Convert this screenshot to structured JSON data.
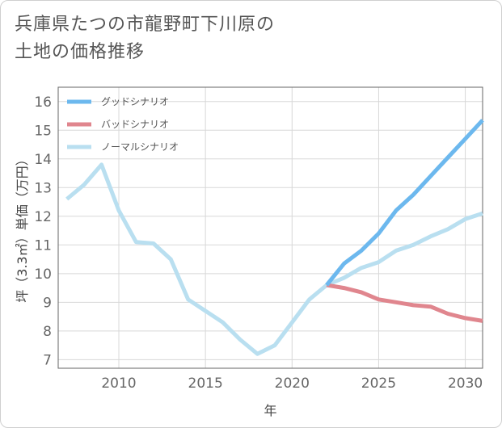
{
  "title_line1": "兵庫県たつの市龍野町下川原の",
  "title_line2": "土地の価格推移",
  "chart_data": {
    "type": "line",
    "title": "兵庫県たつの市龍野町下川原の土地の価格推移",
    "xlabel": "年",
    "ylabel": "坪（3.3㎡）単価（万円）",
    "xlim": [
      2006.5,
      2031
    ],
    "ylim": [
      6.7,
      16.5
    ],
    "xticks": [
      2010,
      2015,
      2020,
      2025,
      2030
    ],
    "yticks": [
      7,
      8,
      9,
      10,
      11,
      12,
      13,
      14,
      15,
      16
    ],
    "legend_position": "top-left",
    "series": [
      {
        "name": "グッドシナリオ",
        "color": "#6cb8ee",
        "x": [
          2022,
          2023,
          2024,
          2025,
          2026,
          2027,
          2028,
          2029,
          2030,
          2031
        ],
        "y": [
          9.6,
          10.35,
          10.8,
          11.4,
          12.2,
          12.75,
          13.4,
          14.05,
          14.7,
          15.35
        ]
      },
      {
        "name": "バッドシナリオ",
        "color": "#e0868e",
        "x": [
          2022,
          2023,
          2024,
          2025,
          2026,
          2027,
          2028,
          2029,
          2030,
          2031
        ],
        "y": [
          9.6,
          9.5,
          9.35,
          9.1,
          9.0,
          8.9,
          8.85,
          8.6,
          8.45,
          8.35
        ]
      },
      {
        "name": "ノーマルシナリオ",
        "color": "#b9dff0",
        "x": [
          2007,
          2008,
          2009,
          2010,
          2011,
          2012,
          2013,
          2014,
          2015,
          2016,
          2017,
          2018,
          2019,
          2020,
          2021,
          2022,
          2023,
          2024,
          2025,
          2026,
          2027,
          2028,
          2029,
          2030,
          2031
        ],
        "y": [
          12.6,
          13.1,
          13.8,
          12.2,
          11.1,
          11.05,
          10.5,
          9.1,
          8.7,
          8.3,
          7.7,
          7.2,
          7.5,
          8.3,
          9.1,
          9.6,
          9.85,
          10.2,
          10.4,
          10.8,
          11.0,
          11.3,
          11.55,
          11.9,
          12.1
        ]
      }
    ]
  }
}
